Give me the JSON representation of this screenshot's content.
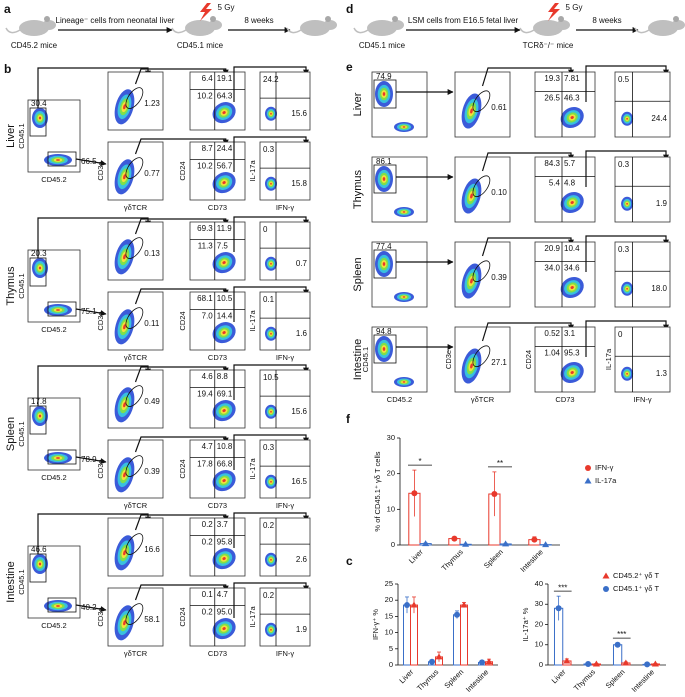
{
  "panel_labels": [
    "a",
    "b",
    "d",
    "e",
    "f",
    "c"
  ],
  "a": {
    "cells": "Lineage⁻ cells from neonatal liver",
    "dose": "5 Gy",
    "time": "8 weeks",
    "donor": "CD45.2 mice",
    "recipient": "CD45.1 mice"
  },
  "b": {
    "axes": [
      "CD45.1",
      "CD45.2",
      "CD3e",
      "γδTCR",
      "CD24",
      "CD73",
      "IL-17a",
      "IFN-γ"
    ],
    "tissues": [
      {
        "name": "Liver",
        "parent": [
          "30.4",
          "66.5"
        ],
        "rows": [
          {
            "gate": "1.23",
            "quad": [
              "6.4",
              "19.1",
              "10.2",
              "64.3"
            ],
            "cyto": [
              "24.2",
              "15.6"
            ]
          },
          {
            "gate": "0.77",
            "quad": [
              "8.7",
              "24.4",
              "10.2",
              "56.7"
            ],
            "cyto": [
              "0.3",
              "15.8"
            ]
          }
        ]
      },
      {
        "name": "Thymus",
        "parent": [
          "20.3",
          "75.1"
        ],
        "rows": [
          {
            "gate": "0.13",
            "quad": [
              "69.3",
              "11.9",
              "11.3",
              "7.5"
            ],
            "cyto": [
              "0",
              "0.7"
            ]
          },
          {
            "gate": "0.11",
            "quad": [
              "68.1",
              "10.5",
              "7.0",
              "14.4"
            ],
            "cyto": [
              "0.1",
              "1.6"
            ]
          }
        ]
      },
      {
        "name": "Spleen",
        "parent": [
          "17.8",
          "78.9"
        ],
        "rows": [
          {
            "gate": "0.49",
            "quad": [
              "4.6",
              "8.8",
              "19.4",
              "69.1"
            ],
            "cyto": [
              "10.5",
              "15.6"
            ]
          },
          {
            "gate": "0.39",
            "quad": [
              "4.7",
              "10.8",
              "17.8",
              "66.8"
            ],
            "cyto": [
              "0.3",
              "16.5"
            ]
          }
        ]
      },
      {
        "name": "Intestine",
        "parent": [
          "46.6",
          "40.2"
        ],
        "rows": [
          {
            "gate": "16.6",
            "quad": [
              "0.2",
              "3.7",
              "0.2",
              "95.8"
            ],
            "cyto": [
              "0.2",
              "2.6"
            ]
          },
          {
            "gate": "58.1",
            "quad": [
              "0.1",
              "4.7",
              "0.2",
              "95.0"
            ],
            "cyto": [
              "0.2",
              "1.9"
            ]
          }
        ]
      }
    ]
  },
  "d": {
    "cells": "LSM cells from E16.5 fetal liver",
    "dose": "5 Gy",
    "time": "8 weeks",
    "donor": "CD45.1 mice",
    "recipient": "TCRδ⁻/⁻ mice"
  },
  "e": {
    "axes": [
      "CD45.1",
      "CD45.2",
      "CD3e",
      "γδTCR",
      "CD24",
      "CD73",
      "IL-17a",
      "IFN-γ"
    ],
    "tissues": [
      {
        "name": "Liver",
        "parent": "74.9",
        "gate": "0.61",
        "quad": [
          "19.3",
          "7.81",
          "26.5",
          "46.3"
        ],
        "cyto": [
          "0.5",
          "24.4"
        ]
      },
      {
        "name": "Thymus",
        "parent": "86.1",
        "gate": "0.10",
        "quad": [
          "84.3",
          "5.7",
          "5.4",
          "4.8"
        ],
        "cyto": [
          "0.3",
          "1.9"
        ]
      },
      {
        "name": "Spleen",
        "parent": "77.4",
        "gate": "0.39",
        "quad": [
          "20.9",
          "10.4",
          "34.0",
          "34.6"
        ],
        "cyto": [
          "0.3",
          "18.0"
        ]
      },
      {
        "name": "Intestine",
        "parent": "94.8",
        "gate": "27.1",
        "quad": [
          "0.52",
          "3.1",
          "1.04",
          "95.3"
        ],
        "cyto": [
          "0",
          "1.3"
        ]
      }
    ]
  },
  "chart_data": [
    {
      "type": "bar",
      "ylabel": "% of CD45.1⁺ γδ T cells",
      "categories": [
        "Liver",
        "Thymus",
        "Spleen",
        "Intestine"
      ],
      "ylim": [
        0,
        30
      ],
      "yticks": [
        0,
        10,
        20,
        30
      ],
      "legend": "right",
      "annotations": [
        "*",
        "**"
      ],
      "series": [
        {
          "name": "IFN-γ",
          "color": "#e8392c",
          "marker": "circle",
          "values": [
            14.5,
            1.8,
            14.3,
            1.5
          ],
          "errors": [
            6.5,
            0.5,
            6.2,
            0.8
          ]
        },
        {
          "name": "IL-17a",
          "color": "#3a6fc8",
          "marker": "triangle",
          "values": [
            0.4,
            0.2,
            0.3,
            0.1
          ],
          "errors": [
            0.2,
            0.1,
            0.2,
            0.1
          ]
        }
      ]
    },
    {
      "type": "bar",
      "ylabel": "IFN-γ⁺ %",
      "categories": [
        "Liver",
        "Thymus",
        "Spleen",
        "Intestine"
      ],
      "ylim": [
        0,
        25
      ],
      "yticks": [
        0,
        5,
        10,
        15,
        20,
        25
      ],
      "series": [
        {
          "name": "CD45.1⁺ γδ T",
          "color": "#3a6fc8",
          "marker": "circle",
          "values": [
            18.5,
            1.0,
            15.5,
            0.8
          ],
          "errors": [
            2.5,
            0.4,
            1.2,
            0.5
          ]
        },
        {
          "name": "CD45.2⁺ γδ T",
          "color": "#e8392c",
          "marker": "triangle",
          "values": [
            18.5,
            2.5,
            18.5,
            1.0
          ],
          "errors": [
            2.5,
            1.5,
            0.8,
            0.8
          ]
        }
      ]
    },
    {
      "type": "bar",
      "ylabel": "IL-17a⁺ %",
      "categories": [
        "Liver",
        "Thymus",
        "Spleen",
        "Intestine"
      ],
      "ylim": [
        0,
        40
      ],
      "yticks": [
        0,
        10,
        20,
        30,
        40
      ],
      "legend": "upper right",
      "annotations": [
        "***",
        "***"
      ],
      "series": [
        {
          "name": "CD45.1⁺ γδ T",
          "color": "#3a6fc8",
          "marker": "circle",
          "values": [
            28,
            0.5,
            10,
            0.3
          ],
          "errors": [
            6,
            0.3,
            0.8,
            0.2
          ]
        },
        {
          "name": "CD45.2⁺ γδ T",
          "color": "#e8392c",
          "marker": "triangle",
          "values": [
            2.0,
            0.5,
            1.0,
            0.5
          ],
          "errors": [
            1.0,
            0.3,
            0.5,
            0.3
          ]
        }
      ]
    }
  ]
}
